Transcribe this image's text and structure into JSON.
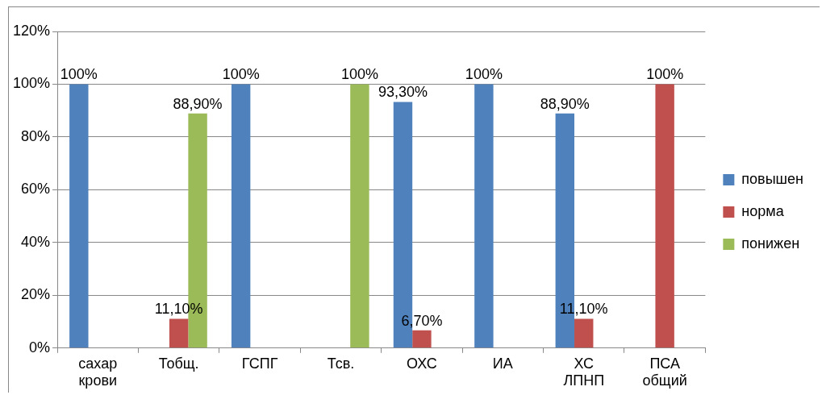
{
  "chart_data": {
    "type": "bar",
    "categories": [
      "сахар крови",
      "Тобщ.",
      "ГСПГ",
      "Тсв.",
      "ОХС",
      "ИА",
      "ХС ЛПНП",
      "ПСА общий"
    ],
    "series": [
      {
        "name": "повышен",
        "color": "#4f81bd",
        "values": [
          100,
          null,
          100,
          null,
          93.3,
          100,
          88.9,
          null
        ],
        "value_labels": [
          "100%",
          null,
          "100%",
          null,
          "93,30%",
          "100%",
          "88,90%",
          null
        ]
      },
      {
        "name": "норма",
        "color": "#c0504d",
        "values": [
          null,
          11.1,
          null,
          null,
          6.7,
          null,
          11.1,
          100
        ],
        "value_labels": [
          null,
          "11,10%",
          null,
          null,
          "6,70%",
          null,
          "11,10%",
          "100%"
        ]
      },
      {
        "name": "понижен",
        "color": "#9bbb59",
        "values": [
          null,
          88.9,
          null,
          100,
          null,
          null,
          null,
          null
        ],
        "value_labels": [
          null,
          "88,90%",
          null,
          "100%",
          null,
          null,
          null,
          null
        ]
      }
    ],
    "ylim": [
      0,
      120
    ],
    "yticks": [
      {
        "value": 0,
        "label": "0%"
      },
      {
        "value": 20,
        "label": "20%"
      },
      {
        "value": 40,
        "label": "40%"
      },
      {
        "value": 60,
        "label": "60%"
      },
      {
        "value": 80,
        "label": "80%"
      },
      {
        "value": 100,
        "label": "100%"
      },
      {
        "value": 120,
        "label": "120%"
      }
    ],
    "grid": "y",
    "legend": "right"
  }
}
